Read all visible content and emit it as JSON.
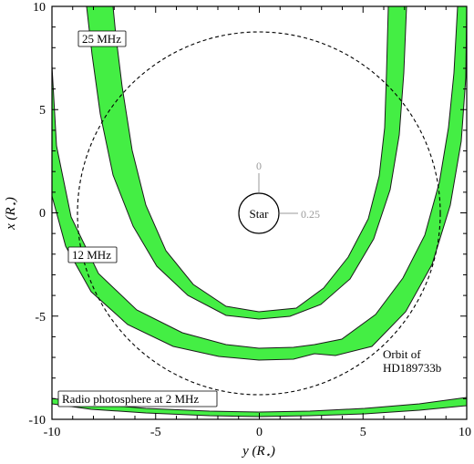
{
  "chart_data": {
    "type": "diagram",
    "xlabel": {
      "main": "y (R",
      "sub": "⋆",
      "tail": ")"
    },
    "ylabel": {
      "main": "x (R",
      "sub": "⋆",
      "tail": ")"
    },
    "xlim": [
      -10,
      10
    ],
    "ylim": [
      -10,
      10
    ],
    "x_ticks": [
      "-10",
      "-5",
      "0",
      "5",
      "10"
    ],
    "y_ticks": [
      "10",
      "5",
      "0",
      "-5",
      "-10"
    ],
    "grid": false,
    "colors": {
      "band_fill": "#44ee44",
      "band_edge": "#1a1a1a",
      "orbit": "#000000",
      "scale": "#9a9a9a"
    },
    "star": {
      "label": "Star",
      "center": [
        0,
        0
      ],
      "radius": 1.05
    },
    "orbit": {
      "label_line1": "Orbit of",
      "label_line2": "HD189733b",
      "radius": 8.8,
      "style": "dashed"
    },
    "scale_labels": {
      "top": "0",
      "right": "0.25"
    },
    "bands": [
      {
        "label": "25 MHz",
        "inner_min_x": -4.8,
        "outer_min_x": -4.95
      },
      {
        "label": "12 MHz",
        "inner_min_x": -6.7,
        "outer_min_x": -7.1
      },
      {
        "label": "Radio photosphere at 2 MHz",
        "inner_min_x": -9.6,
        "outer_min_x": -9.9
      }
    ]
  }
}
